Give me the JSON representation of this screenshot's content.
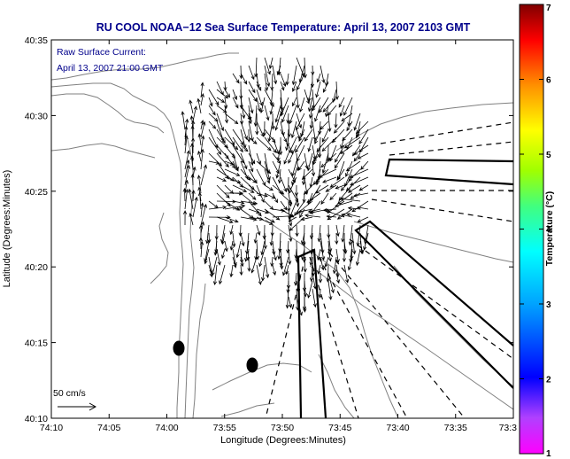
{
  "title": "RU COOL  NOAA−12  Sea Surface Temperature:  April 13, 2007 2103 GMT",
  "annotation": {
    "line1": "Raw Surface Current:",
    "line2": "April 13, 2007 21:00 GMT"
  },
  "axes": {
    "xlabel": "Longitude (Degrees:Minutes)",
    "ylabel": "Latitude (Degrees:Minutes)",
    "x_ticks": [
      "74:10",
      "74:05",
      "74:00",
      "73:55",
      "73:50",
      "73:45",
      "73:40",
      "73:35",
      "73:3"
    ],
    "y_ticks": [
      "40:35",
      "40:30",
      "40:25",
      "40:20",
      "40:15",
      "40:10"
    ]
  },
  "scale_label": "50 cm/s",
  "colorbar": {
    "label": "Temperature (°C)",
    "ticks": [
      "7",
      "6",
      "5",
      "4",
      "3",
      "2",
      "1"
    ],
    "range": [
      1,
      7
    ]
  },
  "colors": {
    "title": "#00008b",
    "annotation": "#00008b",
    "ink": "#000000",
    "contour": "#808080"
  }
}
